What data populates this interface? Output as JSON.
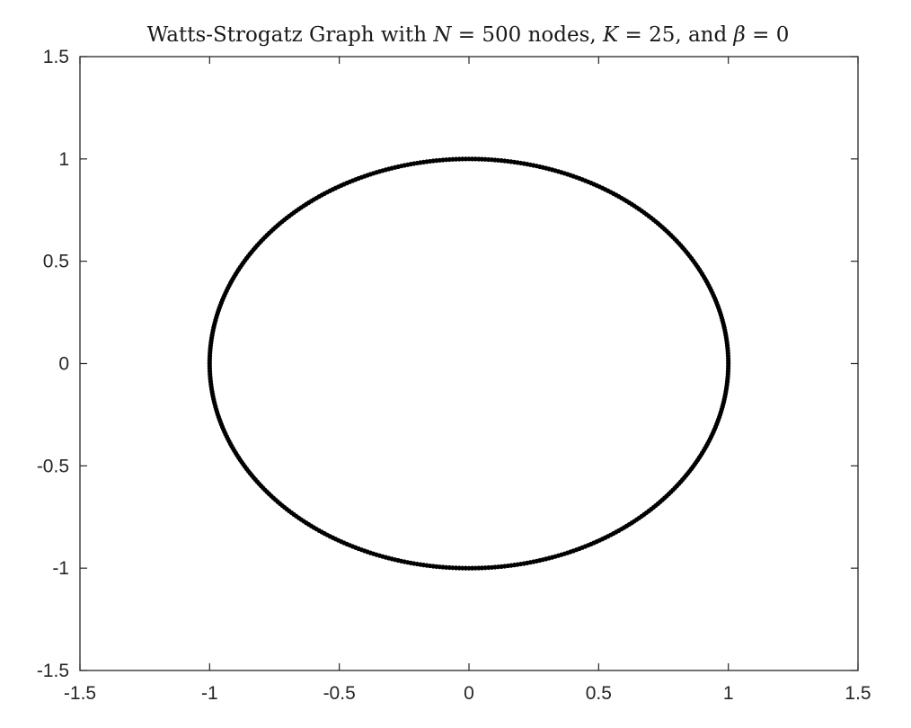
{
  "chart_data": {
    "type": "scatter",
    "title": {
      "prefix": "Watts-Strogatz Graph with ",
      "n_symbol": "N",
      "n_part": " = 500 nodes, ",
      "k_symbol": "K",
      "k_part": " = 25, and ",
      "beta_symbol": "β",
      "beta_part": " = 0"
    },
    "xlabel": "",
    "ylabel": "",
    "xlim": [
      -1.5,
      1.5
    ],
    "ylim": [
      -1.5,
      1.5
    ],
    "xticks": [
      -1.5,
      -1,
      -0.5,
      0,
      0.5,
      1,
      1.5
    ],
    "yticks": [
      -1.5,
      -1,
      -0.5,
      0,
      0.5,
      1,
      1.5
    ],
    "xtick_labels": [
      "-1.5",
      "-1",
      "-0.5",
      "0",
      "0.5",
      "1",
      "1.5"
    ],
    "ytick_labels": [
      "-1.5",
      "-1",
      "-0.5",
      "0",
      "0.5",
      "1",
      "1.5"
    ],
    "grid": false,
    "nodes": {
      "count": 500,
      "layout": "circle",
      "radius": 1,
      "color": "#000000"
    },
    "edges": {
      "color": "#4d9bd4"
    }
  }
}
